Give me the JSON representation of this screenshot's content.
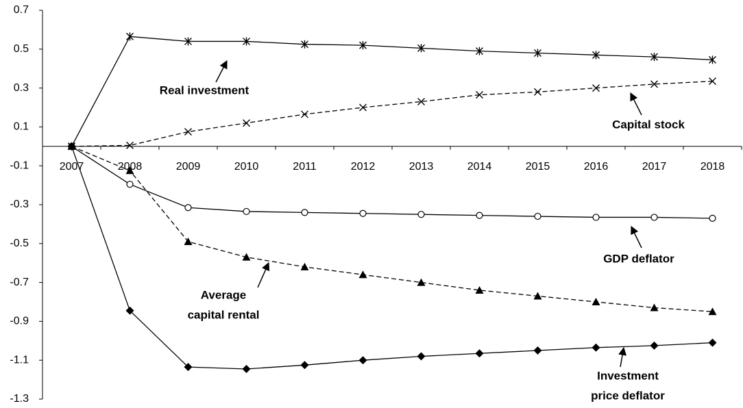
{
  "chart_data": {
    "type": "line",
    "categories": [
      "2007",
      "2008",
      "2009",
      "2010",
      "2011",
      "2012",
      "2013",
      "2014",
      "2015",
      "2016",
      "2017",
      "2018"
    ],
    "ylim": [
      -1.3,
      0.7
    ],
    "yticks": [
      0.7,
      0.5,
      0.3,
      0.1,
      -0.1,
      -0.3,
      -0.5,
      -0.7,
      -0.9,
      -1.1,
      -1.3
    ],
    "series": [
      {
        "label": [
          "Real investment"
        ],
        "color": "#000000",
        "dashed": false,
        "marker": "star",
        "values": [
          0,
          0.565,
          0.54,
          0.54,
          0.525,
          0.52,
          0.505,
          0.49,
          0.48,
          0.47,
          0.46,
          0.445
        ]
      },
      {
        "label": [
          "Capital stock"
        ],
        "color": "#000000",
        "dashed": true,
        "marker": "x",
        "values": [
          0,
          0.005,
          0.075,
          0.12,
          0.165,
          0.2,
          0.23,
          0.265,
          0.28,
          0.3,
          0.32,
          0.335
        ]
      },
      {
        "label": [
          "GDP deflator"
        ],
        "color": "#000000",
        "dashed": false,
        "marker": "circle",
        "values": [
          0,
          -0.195,
          -0.315,
          -0.335,
          -0.34,
          -0.345,
          -0.35,
          -0.355,
          -0.36,
          -0.365,
          -0.365,
          -0.37
        ]
      },
      {
        "label": [
          "Average",
          "capital rental"
        ],
        "color": "#000000",
        "dashed": true,
        "marker": "triangle",
        "values": [
          0,
          -0.125,
          -0.49,
          -0.57,
          -0.62,
          -0.66,
          -0.7,
          -0.74,
          -0.77,
          -0.8,
          -0.83,
          -0.85
        ]
      },
      {
        "label": [
          "Investment",
          "price deflator"
        ],
        "color": "#000000",
        "dashed": false,
        "marker": "diamond",
        "values": [
          0,
          -0.845,
          -1.135,
          -1.145,
          -1.125,
          -1.1,
          -1.08,
          -1.065,
          -1.05,
          -1.035,
          -1.025,
          -1.01
        ]
      }
    ]
  }
}
